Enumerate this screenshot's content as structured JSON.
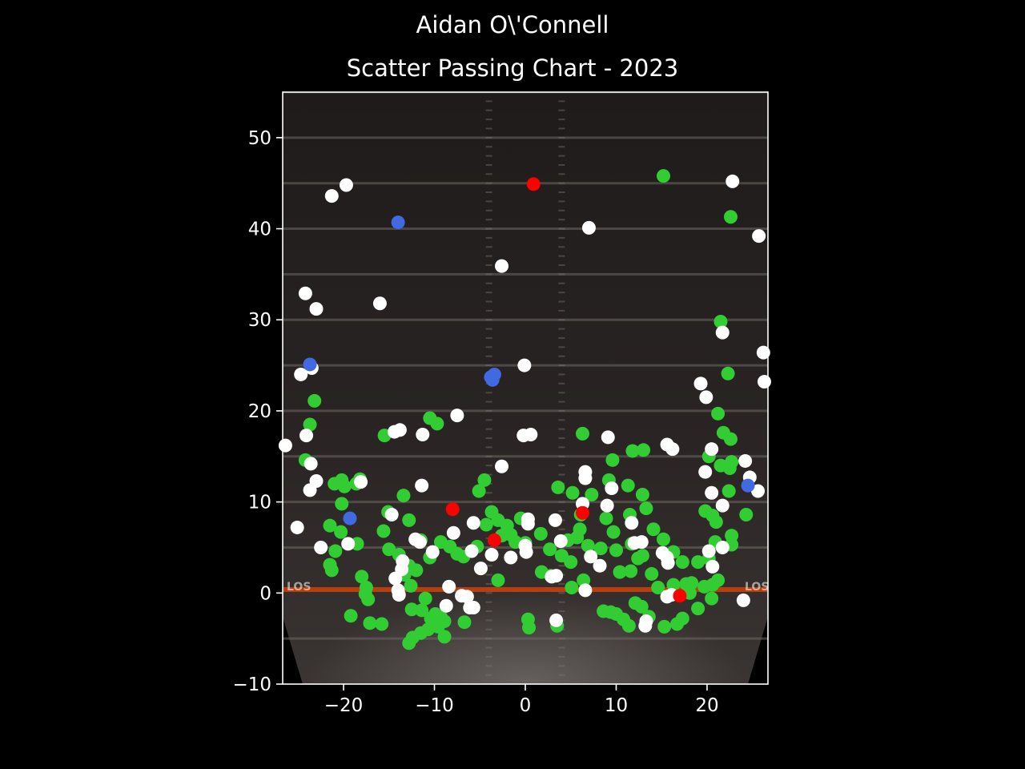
{
  "chart_data": {
    "type": "scatter",
    "title": "Aidan O\\'Connell",
    "subtitle": "Scatter Passing Chart - 2023",
    "xlabel": "",
    "ylabel": "",
    "xlim": [
      -26.7,
      26.7
    ],
    "ylim": [
      -10,
      55
    ],
    "xticks": [
      "−20",
      "−10",
      "0",
      "10",
      "20"
    ],
    "yticks": [
      "−10",
      "0",
      "10",
      "20",
      "30",
      "40",
      "50"
    ],
    "grid": false,
    "background": "football field image, line of scrimmage at y=0",
    "colors": {
      "complete": "#32cd32",
      "incomplete": "#ffffff",
      "touchdown": "#4169e1",
      "interception": "#ff0000"
    },
    "series": [
      {
        "color": "complete",
        "points": [
          [
            15.2,
            45.8
          ],
          [
            22.6,
            41.3
          ],
          [
            21.5,
            29.8
          ],
          [
            22.3,
            24.1
          ],
          [
            -23.2,
            21.1
          ],
          [
            -23.7,
            18.5
          ],
          [
            21.2,
            19.7
          ],
          [
            21.8,
            17.6
          ],
          [
            22.6,
            16.9
          ],
          [
            -15.5,
            17.3
          ],
          [
            -10.5,
            19.2
          ],
          [
            -9.7,
            18.6
          ],
          [
            6.3,
            17.5
          ],
          [
            9.6,
            14.6
          ],
          [
            11.8,
            15.6
          ],
          [
            13.0,
            15.7
          ],
          [
            -24.2,
            14.6
          ],
          [
            20.2,
            15.0
          ],
          [
            21.5,
            14.0
          ],
          [
            22.7,
            14.4
          ],
          [
            22.5,
            13.7
          ],
          [
            -21.0,
            12.0
          ],
          [
            -20.2,
            12.4
          ],
          [
            -19.9,
            11.7
          ],
          [
            -18.6,
            12.0
          ],
          [
            -18.2,
            12.5
          ],
          [
            -4.5,
            12.4
          ],
          [
            -5.1,
            11.2
          ],
          [
            3.6,
            11.6
          ],
          [
            5.2,
            11.0
          ],
          [
            7.3,
            10.8
          ],
          [
            9.2,
            12.4
          ],
          [
            11.3,
            11.8
          ],
          [
            12.9,
            10.8
          ],
          [
            22.4,
            11.2
          ],
          [
            -13.4,
            10.7
          ],
          [
            -20.2,
            9.8
          ],
          [
            -15.1,
            8.9
          ],
          [
            -12.8,
            8.0
          ],
          [
            -3.7,
            8.9
          ],
          [
            -3.0,
            8.0
          ],
          [
            -2.0,
            7.4
          ],
          [
            -0.5,
            8.2
          ],
          [
            6.1,
            8.6
          ],
          [
            8.9,
            8.2
          ],
          [
            11.5,
            8.6
          ],
          [
            13.3,
            9.3
          ],
          [
            20.6,
            8.5
          ],
          [
            19.8,
            9.0
          ],
          [
            21.0,
            7.8
          ],
          [
            24.3,
            8.6
          ],
          [
            -21.5,
            7.4
          ],
          [
            -20.3,
            6.7
          ],
          [
            -15.6,
            6.8
          ],
          [
            -11.5,
            5.8
          ],
          [
            -9.3,
            5.6
          ],
          [
            -8.3,
            5.1
          ],
          [
            -7.5,
            4.3
          ],
          [
            -6.8,
            4.0
          ],
          [
            -5.3,
            5.1
          ],
          [
            -4.3,
            7.5
          ],
          [
            -2.6,
            6.3
          ],
          [
            -1.6,
            6.4
          ],
          [
            -1.1,
            5.6
          ],
          [
            0.0,
            5.5
          ],
          [
            1.7,
            6.5
          ],
          [
            2.7,
            4.8
          ],
          [
            4.0,
            4.1
          ],
          [
            4.7,
            5.8
          ],
          [
            5.7,
            6.1
          ],
          [
            6.0,
            7.0
          ],
          [
            6.9,
            5.2
          ],
          [
            8.3,
            4.9
          ],
          [
            9.7,
            6.7
          ],
          [
            10.0,
            4.7
          ],
          [
            11.7,
            5.4
          ],
          [
            12.9,
            4.1
          ],
          [
            14.1,
            7.0
          ],
          [
            15.2,
            5.9
          ],
          [
            17.3,
            3.4
          ],
          [
            16.3,
            4.5
          ],
          [
            19.0,
            3.4
          ],
          [
            20.2,
            3.8
          ],
          [
            20.9,
            5.6
          ],
          [
            22.7,
            5.3
          ],
          [
            22.7,
            6.3
          ],
          [
            -20.9,
            4.6
          ],
          [
            -21.5,
            3.1
          ],
          [
            -21.3,
            2.5
          ],
          [
            -18.5,
            5.4
          ],
          [
            -15.0,
            4.8
          ],
          [
            -13.9,
            4.2
          ],
          [
            -12.8,
            3.0
          ],
          [
            -13.3,
            2.0
          ],
          [
            -12.0,
            2.5
          ],
          [
            -10.5,
            3.9
          ],
          [
            -3.0,
            1.4
          ],
          [
            1.8,
            2.3
          ],
          [
            2.8,
            1.9
          ],
          [
            5.0,
            3.4
          ],
          [
            5.1,
            0.6
          ],
          [
            6.4,
            1.4
          ],
          [
            10.4,
            2.3
          ],
          [
            11.6,
            2.4
          ],
          [
            12.4,
            3.8
          ],
          [
            13.9,
            2.1
          ],
          [
            14.6,
            0.6
          ],
          [
            16.3,
            0.9
          ],
          [
            17.7,
            1.0
          ],
          [
            18.3,
            1.1
          ],
          [
            19.7,
            0.7
          ],
          [
            21.2,
            1.4
          ],
          [
            20.6,
            0.9
          ],
          [
            -18.0,
            1.8
          ],
          [
            -17.5,
            0.6
          ],
          [
            -17.6,
            -0.1
          ],
          [
            -17.3,
            -0.7
          ],
          [
            -12.6,
            0.8
          ],
          [
            -19.2,
            -2.5
          ],
          [
            -17.1,
            -3.3
          ],
          [
            -15.8,
            -3.4
          ],
          [
            -11.0,
            -0.6
          ],
          [
            -11.4,
            -1.9
          ],
          [
            -12.5,
            -1.8
          ],
          [
            -10.4,
            -2.8
          ],
          [
            -9.9,
            -2.3
          ],
          [
            -9.3,
            -2.6
          ],
          [
            -8.9,
            -3.1
          ],
          [
            -9.6,
            -3.7
          ],
          [
            -10.7,
            -4.0
          ],
          [
            -11.5,
            -4.4
          ],
          [
            -12.4,
            -4.9
          ],
          [
            -12.8,
            -5.5
          ],
          [
            -8.9,
            -4.8
          ],
          [
            -6.7,
            -3.2
          ],
          [
            0.3,
            -2.9
          ],
          [
            0.4,
            -3.8
          ],
          [
            3.5,
            -3.6
          ],
          [
            8.6,
            -2.0
          ],
          [
            9.4,
            -2.1
          ],
          [
            10.0,
            -2.3
          ],
          [
            10.8,
            -2.9
          ],
          [
            11.4,
            -3.6
          ],
          [
            12.1,
            -1.1
          ],
          [
            12.8,
            -1.5
          ],
          [
            13.6,
            -2.6
          ],
          [
            15.3,
            -3.7
          ],
          [
            16.7,
            -3.4
          ],
          [
            17.3,
            -2.8
          ],
          [
            18.1,
            0.0
          ],
          [
            19.0,
            -1.7
          ],
          [
            20.5,
            -0.6
          ]
        ]
      },
      {
        "color": "incomplete",
        "points": [
          [
            22.8,
            45.2
          ],
          [
            -19.7,
            44.8
          ],
          [
            -21.3,
            43.6
          ],
          [
            7.0,
            40.1
          ],
          [
            25.7,
            39.2
          ],
          [
            -2.6,
            35.9
          ],
          [
            -24.2,
            32.9
          ],
          [
            -23.0,
            31.2
          ],
          [
            -16.0,
            31.8
          ],
          [
            21.7,
            28.6
          ],
          [
            26.2,
            26.4
          ],
          [
            -23.5,
            24.7
          ],
          [
            -24.7,
            24.0
          ],
          [
            -0.1,
            25.0
          ],
          [
            19.3,
            23.0
          ],
          [
            19.9,
            21.5
          ],
          [
            26.3,
            23.2
          ],
          [
            -7.5,
            19.5
          ],
          [
            -14.4,
            17.7
          ],
          [
            -13.8,
            17.9
          ],
          [
            -11.3,
            17.4
          ],
          [
            -0.2,
            17.3
          ],
          [
            0.6,
            17.4
          ],
          [
            9.1,
            17.1
          ],
          [
            15.6,
            16.3
          ],
          [
            16.2,
            15.8
          ],
          [
            -26.4,
            16.2
          ],
          [
            -24.1,
            17.3
          ],
          [
            -23.6,
            14.2
          ],
          [
            -23.7,
            11.3
          ],
          [
            -23.0,
            12.3
          ],
          [
            -18.1,
            12.2
          ],
          [
            -11.4,
            11.8
          ],
          [
            -2.6,
            13.9
          ],
          [
            6.6,
            12.6
          ],
          [
            6.6,
            13.3
          ],
          [
            9.5,
            11.5
          ],
          [
            20.5,
            15.8
          ],
          [
            19.8,
            13.3
          ],
          [
            20.5,
            11.0
          ],
          [
            21.7,
            9.6
          ],
          [
            24.2,
            14.5
          ],
          [
            24.7,
            12.7
          ],
          [
            25.6,
            11.2
          ],
          [
            -25.1,
            7.2
          ],
          [
            -14.7,
            8.6
          ],
          [
            -7.9,
            6.6
          ],
          [
            -5.7,
            7.7
          ],
          [
            0.3,
            8.1
          ],
          [
            0.3,
            7.6
          ],
          [
            3.3,
            8.0
          ],
          [
            6.3,
            9.8
          ],
          [
            9.0,
            9.6
          ],
          [
            11.7,
            7.7
          ],
          [
            -22.5,
            5.0
          ],
          [
            -19.5,
            5.4
          ],
          [
            -12.1,
            5.9
          ],
          [
            -11.6,
            5.6
          ],
          [
            -10.2,
            4.5
          ],
          [
            -5.9,
            4.6
          ],
          [
            -3.7,
            4.2
          ],
          [
            -4.9,
            2.7
          ],
          [
            -1.6,
            3.9
          ],
          [
            0.1,
            4.5
          ],
          [
            0.0,
            5.2
          ],
          [
            3.9,
            5.7
          ],
          [
            7.2,
            4.0
          ],
          [
            8.2,
            3.0
          ],
          [
            12.0,
            5.5
          ],
          [
            12.8,
            5.6
          ],
          [
            15.1,
            4.4
          ],
          [
            15.6,
            3.9
          ],
          [
            15.7,
            3.3
          ],
          [
            20.2,
            4.6
          ],
          [
            21.7,
            5.0
          ],
          [
            20.6,
            2.9
          ],
          [
            -14.3,
            1.6
          ],
          [
            -13.6,
            2.6
          ],
          [
            -13.5,
            3.5
          ],
          [
            -14.0,
            0.3
          ],
          [
            -13.9,
            -0.2
          ],
          [
            2.9,
            1.8
          ],
          [
            3.4,
            1.9
          ],
          [
            6.6,
            0.3
          ],
          [
            -8.4,
            0.7
          ],
          [
            -7.0,
            -0.3
          ],
          [
            -6.4,
            -0.4
          ],
          [
            -5.7,
            -1.6
          ],
          [
            -6.1,
            -1.6
          ],
          [
            -8.7,
            -1.4
          ],
          [
            15.6,
            -0.4
          ],
          [
            16.1,
            -0.2
          ],
          [
            24.0,
            -0.8
          ],
          [
            3.4,
            -3.0
          ],
          [
            13.3,
            -3.1
          ],
          [
            13.2,
            -3.6
          ]
        ]
      },
      {
        "color": "touchdown",
        "points": [
          [
            -14.0,
            40.7
          ],
          [
            -23.7,
            25.1
          ],
          [
            -3.8,
            23.7
          ],
          [
            -3.4,
            24.0
          ],
          [
            -3.6,
            23.4
          ],
          [
            24.5,
            11.8
          ],
          [
            -19.3,
            8.2
          ]
        ]
      },
      {
        "color": "interception",
        "points": [
          [
            0.9,
            44.9
          ],
          [
            -8.0,
            9.2
          ],
          [
            6.3,
            8.8
          ],
          [
            -3.4,
            5.8
          ],
          [
            17.0,
            -0.3
          ]
        ]
      }
    ]
  }
}
